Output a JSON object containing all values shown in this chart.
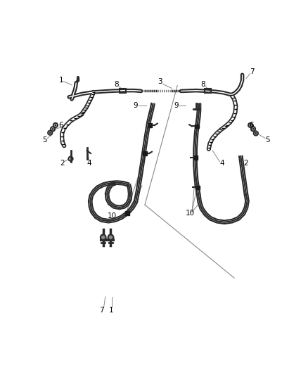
{
  "bg_color": "#ffffff",
  "line_color": "#2a2a2a",
  "pointer_color": "#888888",
  "figsize": [
    4.38,
    5.33
  ],
  "dpi": 100
}
